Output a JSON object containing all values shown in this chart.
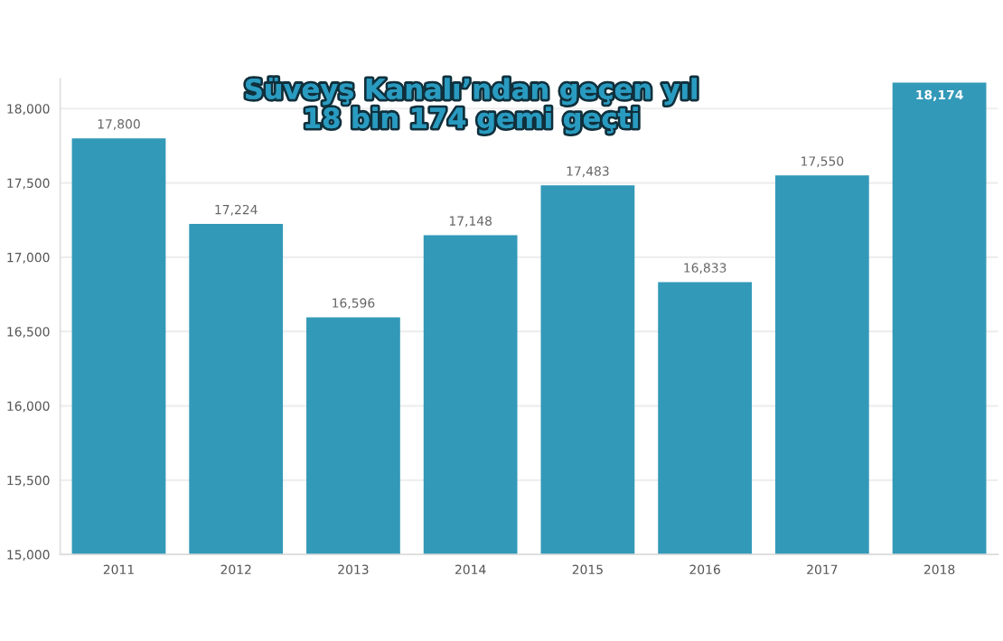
{
  "chart_data": {
    "type": "bar",
    "title": "Süveyş Kanalı’ndan geçen yıl\n18 bin 174 gemi geçti",
    "categories": [
      "2011",
      "2012",
      "2013",
      "2014",
      "2015",
      "2016",
      "2017",
      "2018"
    ],
    "values": [
      17800,
      17224,
      16596,
      17148,
      17483,
      16833,
      17550,
      18174
    ],
    "value_labels": [
      "17,800",
      "17,224",
      "16,596",
      "17,148",
      "17,483",
      "16,833",
      "17,550",
      "18,174"
    ],
    "color": "#3399b8",
    "ylim": [
      15000,
      18200
    ],
    "yticks": [
      {
        "value": 15000,
        "label": "15,000"
      },
      {
        "value": 15500,
        "label": "15,500"
      },
      {
        "value": 16000,
        "label": "16,000"
      },
      {
        "value": 16500,
        "label": "16,500"
      },
      {
        "value": 17000,
        "label": "17,000"
      },
      {
        "value": 17500,
        "label": "17,500"
      },
      {
        "value": 18000,
        "label": "18,000"
      }
    ],
    "grid": "y"
  }
}
